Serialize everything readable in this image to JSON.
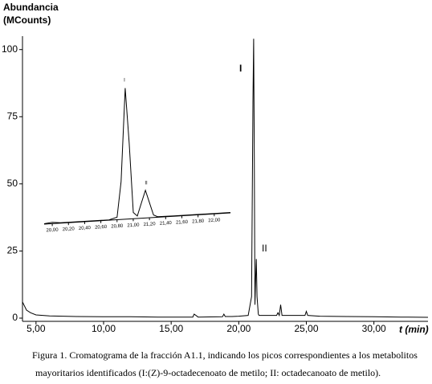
{
  "chart_data": [
    {
      "type": "line",
      "ylabel": [
        "Abundancia",
        "(MCounts)"
      ],
      "xlabel": "t (min)",
      "caption": [
        "Figura 1. Cromatograma de la fracción A1.1, indicando los picos correspondientes a los metabolitos",
        "mayoritarios identificados (I:(Z)-9-octadecenoato de metilo; II: octadecanoato de metilo)."
      ],
      "xlim": [
        4,
        34
      ],
      "ylim": [
        -1.2,
        105
      ],
      "xticks": [
        {
          "value": 5,
          "label": "5,00"
        },
        {
          "value": 10,
          "label": "10,00"
        },
        {
          "value": 15,
          "label": "15,00"
        },
        {
          "value": 20,
          "label": "20,00"
        },
        {
          "value": 25,
          "label": "25,00"
        },
        {
          "value": 30,
          "label": "30,00"
        }
      ],
      "yticks": [
        0,
        25,
        50,
        75,
        100
      ],
      "annotations": [
        "I",
        "II"
      ],
      "series": [
        {
          "color": "#000000",
          "x": [
            4.0,
            4.1,
            4.3,
            4.6,
            5,
            5.5,
            6,
            8,
            10,
            12,
            14,
            16,
            16.6,
            16.7,
            17,
            18.8,
            18.9,
            19,
            19.5,
            20,
            20.7,
            20.95,
            21.05,
            21.1,
            21.15,
            21.2,
            21.25,
            21.3,
            21.35,
            21.45,
            21.5,
            22,
            22.8,
            22.9,
            23.0,
            23.1,
            23.2,
            23.4,
            24,
            24.9,
            25.0,
            25.1,
            26,
            28,
            30,
            32,
            34
          ],
          "values": [
            6,
            5,
            3,
            2,
            1.2,
            1,
            0.8,
            0.6,
            0.5,
            0.5,
            0.4,
            0.4,
            0.4,
            1.5,
            0.4,
            0.5,
            1.5,
            0.6,
            0.6,
            0.7,
            1,
            8,
            80,
            104,
            60,
            5,
            15,
            22,
            8,
            1.5,
            1,
            1,
            1,
            2,
            1,
            5,
            1,
            1,
            1,
            1,
            2.5,
            1,
            0.7,
            0.6,
            0.5,
            0.4,
            0.3
          ]
        }
      ]
    },
    {
      "type": "line",
      "xlim": [
        19.9,
        22.2
      ],
      "ylim": [
        0,
        104
      ],
      "xticks": [
        {
          "value": 20.0,
          "label": "20,00"
        },
        {
          "value": 20.2,
          "label": "20,20"
        },
        {
          "value": 20.4,
          "label": "20,40"
        },
        {
          "value": 20.6,
          "label": "20,60"
        },
        {
          "value": 20.8,
          "label": "20,80"
        },
        {
          "value": 21.0,
          "label": "21,00"
        },
        {
          "value": 21.2,
          "label": "21,20"
        },
        {
          "value": 21.4,
          "label": "21,40"
        },
        {
          "value": 21.6,
          "label": "21,60"
        },
        {
          "value": 21.8,
          "label": "21,80"
        },
        {
          "value": 22.0,
          "label": "22,00"
        }
      ],
      "annotations": [
        "I",
        "II"
      ],
      "series": [
        {
          "color": "#000000",
          "x": [
            19.9,
            20.0,
            20.1,
            20.5,
            20.7,
            20.8,
            20.85,
            20.9,
            20.95,
            21.0,
            21.05,
            21.1,
            21.15,
            21.2,
            21.25,
            21.3,
            21.5,
            22.0,
            22.2
          ],
          "values": [
            0.3,
            1,
            0.3,
            0.3,
            0.3,
            2,
            30,
            104,
            60,
            5,
            2,
            12,
            22,
            12,
            2,
            0.5,
            0.3,
            0.3,
            0.3
          ]
        }
      ]
    }
  ]
}
